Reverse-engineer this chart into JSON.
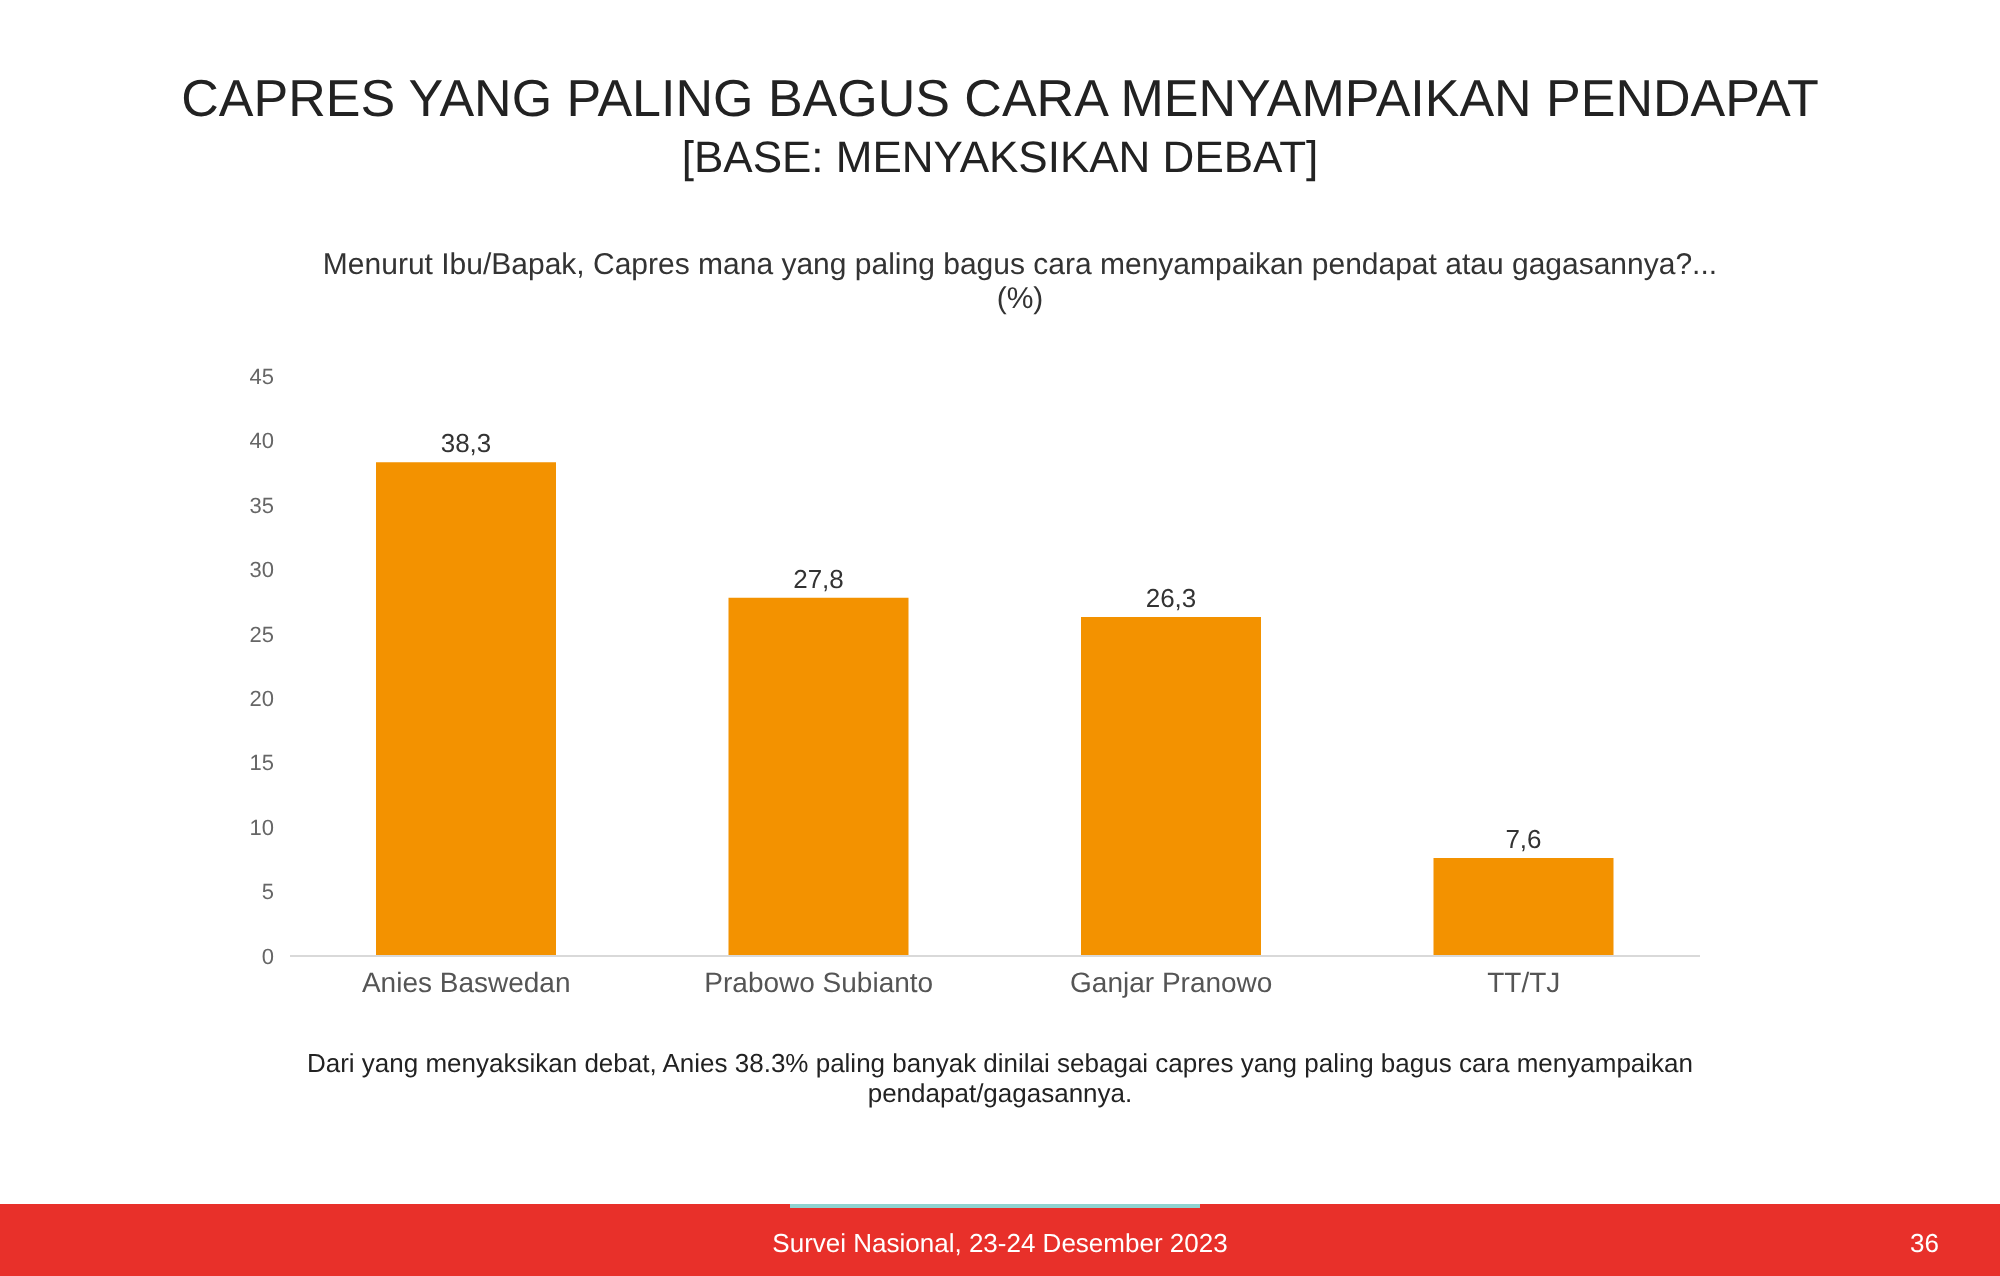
{
  "chart_data": {
    "type": "bar",
    "title": "CAPRES YANG PALING BAGUS CARA MENYAMPAIKAN PENDAPAT",
    "subtitle": "[BASE: MENYAKSIKAN DEBAT]",
    "annotations": [
      "Menurut Ibu/Bapak, Capres mana yang paling bagus cara menyampaikan pendapat atau gagasannya?...(%)",
      "Dari yang menyaksikan debat, Anies 38.3% paling banyak dinilai sebagai capres yang paling bagus cara menyampaikan pendapat/gagasannya.",
      "Survei Nasional, 23-24 Desember 2023",
      "36"
    ],
    "categories": [
      "Anies Baswedan",
      "Prabowo Subianto",
      "Ganjar Pranowo",
      "TT/TJ"
    ],
    "values": [
      38.3,
      27.8,
      26.3,
      7.6
    ],
    "color": "#f39200",
    "ylim": [
      0,
      45
    ],
    "yticks": [
      0,
      5,
      10,
      15,
      20,
      25,
      30,
      35,
      40,
      45
    ],
    "value_labels": [
      "38,3",
      "27,8",
      "26,3",
      "7,6"
    ],
    "grid": false,
    "legend": false
  }
}
